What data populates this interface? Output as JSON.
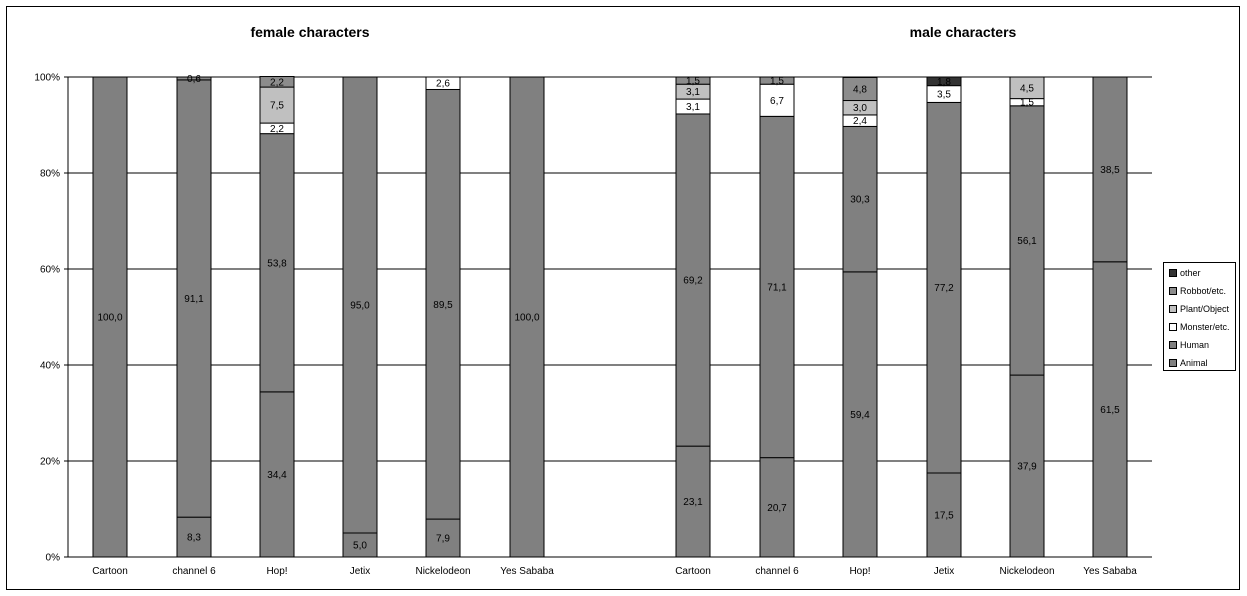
{
  "chart_data": [
    {
      "type": "bar",
      "stacked": true,
      "title": "female characters",
      "categories": [
        "Cartoon",
        "channel 6",
        "Hop!",
        "Jetix",
        "Nickelodeon",
        "Yes Sababa"
      ],
      "series": [
        {
          "name": "Animal",
          "values": [
            null,
            8.3,
            34.4,
            5.0,
            7.9,
            null
          ]
        },
        {
          "name": "Human",
          "values": [
            100.0,
            91.1,
            53.8,
            95.0,
            89.5,
            100.0
          ]
        },
        {
          "name": "Monster/etc.",
          "values": [
            null,
            null,
            2.2,
            null,
            2.6,
            null
          ]
        },
        {
          "name": "Plant/Object",
          "values": [
            null,
            null,
            7.5,
            null,
            null,
            null
          ]
        },
        {
          "name": "Robbot/etc.",
          "values": [
            null,
            0.6,
            2.2,
            null,
            null,
            null
          ]
        },
        {
          "name": "other",
          "values": [
            null,
            null,
            null,
            null,
            null,
            null
          ]
        }
      ],
      "y_ticks": [
        "0%",
        "20%",
        "40%",
        "60%",
        "80%",
        "100%"
      ],
      "ylim": [
        0,
        100
      ],
      "grid": true
    },
    {
      "type": "bar",
      "stacked": true,
      "title": "male characters",
      "categories": [
        "Cartoon",
        "channel 6",
        "Hop!",
        "Jetix",
        "Nickelodeon",
        "Yes Sababa"
      ],
      "series": [
        {
          "name": "Animal",
          "values": [
            23.1,
            20.7,
            59.4,
            17.5,
            37.9,
            61.5
          ]
        },
        {
          "name": "Human",
          "values": [
            69.2,
            71.1,
            30.3,
            77.2,
            56.1,
            38.5
          ]
        },
        {
          "name": "Monster/etc.",
          "values": [
            3.1,
            6.7,
            2.4,
            3.5,
            1.5,
            null
          ]
        },
        {
          "name": "Plant/Object",
          "values": [
            3.1,
            null,
            3.0,
            null,
            4.5,
            null
          ]
        },
        {
          "name": "Robbot/etc.",
          "values": [
            1.5,
            1.5,
            4.8,
            null,
            null,
            null
          ]
        },
        {
          "name": "other",
          "values": [
            null,
            null,
            null,
            1.8,
            null,
            null
          ]
        }
      ],
      "ylim": [
        0,
        100
      ],
      "grid": true
    }
  ],
  "legend": {
    "items": [
      {
        "name": "other",
        "color": "#333333"
      },
      {
        "name": "Robbot/etc.",
        "color": "#8c8c8c"
      },
      {
        "name": "Plant/Object",
        "color": "#c0c0c0"
      },
      {
        "name": "Monster/etc.",
        "color": "#ffffff"
      },
      {
        "name": "Human",
        "color": "#808080"
      },
      {
        "name": "Animal",
        "color": "#808080"
      }
    ]
  },
  "colors": {
    "Animal": "#808080",
    "Human": "#808080",
    "Monster/etc.": "#ffffff",
    "Plant/Object": "#c0c0c0",
    "Robbot/etc.": "#8c8c8c",
    "other": "#333333"
  }
}
